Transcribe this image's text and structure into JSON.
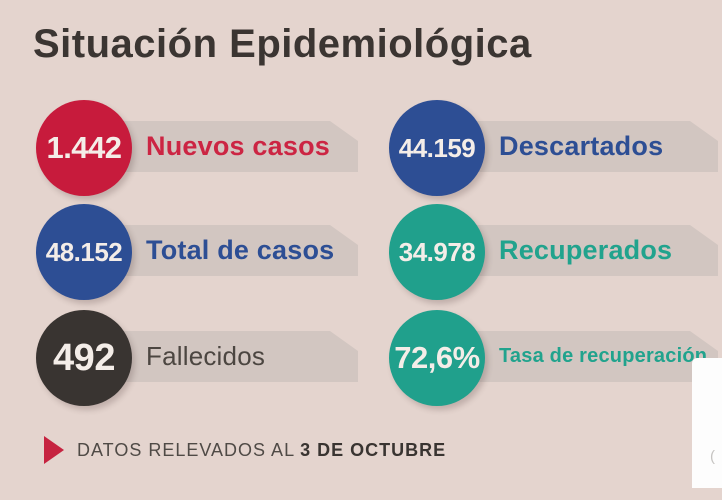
{
  "title": "Situación Epidemiológica",
  "colors": {
    "background": "#e4d4ce",
    "banner": "#d2c6c1",
    "red": "#c71b3c",
    "blue": "#2d4e94",
    "teal": "#20a08c",
    "dark": "#393431"
  },
  "stats": [
    {
      "value": "1.442",
      "label": "Nuevos casos",
      "circle_color": "#c71b3c",
      "label_color": "#cc2543"
    },
    {
      "value": "44.159",
      "label": "Descartados",
      "circle_color": "#2d4e94",
      "label_color": "#2d4e94"
    },
    {
      "value": "48.152",
      "label": "Total de casos",
      "circle_color": "#2d4e94",
      "label_color": "#2d4e94"
    },
    {
      "value": "34.978",
      "label": "Recuperados",
      "circle_color": "#20a08c",
      "label_color": "#21a38d"
    },
    {
      "value": "492",
      "label": "Fallecidos",
      "circle_color": "#393431",
      "label_color": "#4c4641"
    },
    {
      "value": "72,6%",
      "label": "Tasa de recuperación",
      "circle_color": "#20a08c",
      "label_color": "#21a38d"
    }
  ],
  "footer": {
    "prefix": "DATOS RELEVADOS AL",
    "date": "3 DE OCTUBRE"
  },
  "chart_data": {
    "type": "table",
    "title": "Situación Epidemiológica",
    "categories": [
      "Nuevos casos",
      "Descartados",
      "Total de casos",
      "Recuperados",
      "Fallecidos",
      "Tasa de recuperación"
    ],
    "values": [
      1442,
      44159,
      48152,
      34978,
      492,
      72.6
    ],
    "value_labels": [
      "1.442",
      "44.159",
      "48.152",
      "34.978",
      "492",
      "72,6%"
    ],
    "annotations": [
      "DATOS RELEVADOS AL 3 DE OCTUBRE"
    ],
    "layout": "two-column badge grid; left column rows: Nuevos casos, Total de casos, Fallecidos; right column rows: Descartados, Recuperados, Tasa de recuperación"
  }
}
